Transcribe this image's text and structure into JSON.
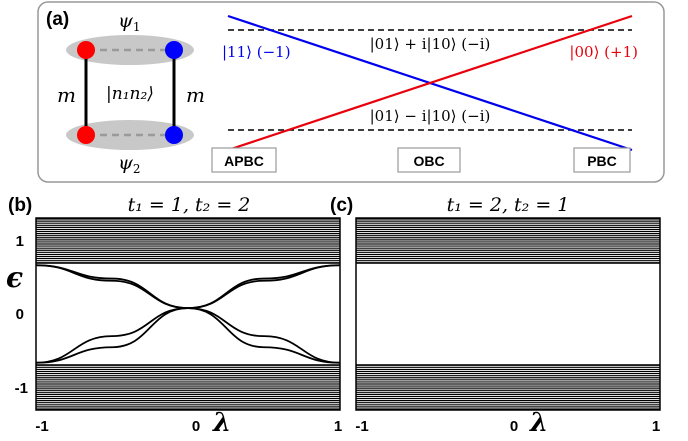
{
  "panel_a": {
    "label": "(a)",
    "psi_top": "ψ",
    "psi_top_sub": "1",
    "psi_bottom": "ψ",
    "psi_bottom_sub": "2",
    "m_left": "m",
    "m_right": "m",
    "state_label": "|n₁n₂⟩",
    "blue_state": "|11⟩ (−1)",
    "red_state": "|00⟩ (+1)",
    "upper_state": "|01⟩ + i|10⟩ (−i)",
    "lower_state": "|01⟩ − i|10⟩ (−i)",
    "buttons": [
      "APBC",
      "OBC",
      "PBC"
    ],
    "colors": {
      "red": "#e8000b",
      "blue": "#0000ee",
      "site_red": "#ff0000",
      "site_blue": "#0000ff",
      "ellipse": "#c8c8c8"
    }
  },
  "panel_b": {
    "label": "(b)",
    "title": "t₁ = 1,  t₂ = 2",
    "ylabel": "ϵ",
    "xlabel": "λ",
    "y_ticks": [
      "1",
      "0",
      "-1"
    ],
    "x_ticks": [
      "-1",
      "0",
      "1"
    ]
  },
  "panel_c": {
    "label": "(c)",
    "title": "t₁ = 2,  t₂ = 1",
    "xlabel": "λ",
    "x_ticks": [
      "-1",
      "0",
      "1"
    ]
  },
  "chart_data": [
    {
      "type": "line",
      "title": "t₁ = 1,  t₂ = 2",
      "xlabel": "λ",
      "ylabel": "ϵ",
      "xlim": [
        -1,
        1
      ],
      "ylim": [
        -1.3,
        1.3
      ],
      "bands": {
        "upper": [
          0.68,
          1.3
        ],
        "lower": [
          -1.3,
          -0.68
        ]
      },
      "in_gap_states": [
        {
          "name": "edge-1",
          "x": [
            -1,
            -0.5,
            0,
            0.5,
            1
          ],
          "y": [
            0.66,
            0.45,
            0.08,
            -0.3,
            -0.66
          ]
        },
        {
          "name": "edge-2",
          "x": [
            -1,
            -0.5,
            0,
            0.5,
            1
          ],
          "y": [
            -0.66,
            -0.3,
            0.08,
            0.45,
            0.66
          ]
        },
        {
          "name": "edge-3",
          "x": [
            -1,
            -0.5,
            0,
            0.5,
            1
          ],
          "y": [
            0.66,
            0.48,
            0.08,
            -0.45,
            -0.66
          ]
        },
        {
          "name": "edge-4",
          "x": [
            -1,
            -0.5,
            0,
            0.5,
            1
          ],
          "y": [
            -0.66,
            -0.45,
            0.08,
            0.48,
            0.66
          ]
        }
      ]
    },
    {
      "type": "line",
      "title": "t₁ = 2,  t₂ = 1",
      "xlabel": "λ",
      "xlim": [
        -1,
        1
      ],
      "ylim": [
        -1.3,
        1.3
      ],
      "bands": {
        "upper": [
          0.68,
          1.3
        ],
        "lower": [
          -1.3,
          -0.68
        ]
      },
      "in_gap_states": []
    }
  ]
}
